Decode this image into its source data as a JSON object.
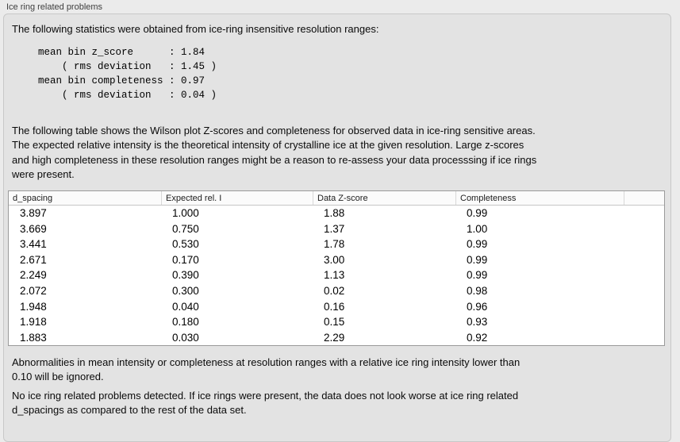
{
  "panel": {
    "title": "Ice ring related problems"
  },
  "colors": {
    "page_bg": "#ebebeb",
    "panel_bg": "#e3e3e3",
    "table_bg": "#ffffff",
    "table_border": "#9a9a9a"
  },
  "intro": "The following statistics were obtained from ice-ring insensitive resolution ranges:",
  "stats": {
    "mean_bin_z_score": "1.84",
    "z_score_rms_deviation": "1.45",
    "mean_bin_completeness": "0.97",
    "completeness_rms_deviation": "0.04",
    "text": "mean bin z_score      : 1.84\n    ( rms deviation   : 1.45 )\nmean bin completeness : 0.97\n    ( rms deviation   : 0.04 )"
  },
  "description": "The following table shows the Wilson plot Z-scores and completeness for observed data in ice-ring sensitive areas.\nThe expected relative intensity is the theoretical intensity of crystalline ice at the given resolution. Large z-scores\nand high completeness in these resolution ranges might be a reason to re-assess your data processsing if ice rings\nwere present.",
  "table": {
    "columns": [
      "d_spacing",
      "Expected rel. I",
      "Data Z-score",
      "Completeness",
      ""
    ],
    "rows": [
      [
        "3.897",
        "1.000",
        "1.88",
        "0.99"
      ],
      [
        "3.669",
        "0.750",
        "1.37",
        "1.00"
      ],
      [
        "3.441",
        "0.530",
        "1.78",
        "0.99"
      ],
      [
        "2.671",
        "0.170",
        "3.00",
        "0.99"
      ],
      [
        "2.249",
        "0.390",
        "1.13",
        "0.99"
      ],
      [
        "2.072",
        "0.300",
        "0.02",
        "0.98"
      ],
      [
        "1.948",
        "0.040",
        "0.16",
        "0.96"
      ],
      [
        "1.918",
        "0.180",
        "0.15",
        "0.93"
      ],
      [
        "1.883",
        "0.030",
        "2.29",
        "0.92"
      ]
    ]
  },
  "footnote": "Abnormalities in mean intensity or completeness at resolution ranges with a relative ice ring intensity lower than\n0.10 will be ignored.",
  "conclusion": "No ice ring related problems detected. If ice rings were present, the data does not look worse at ice ring related\nd_spacings as compared to the rest of the data set."
}
